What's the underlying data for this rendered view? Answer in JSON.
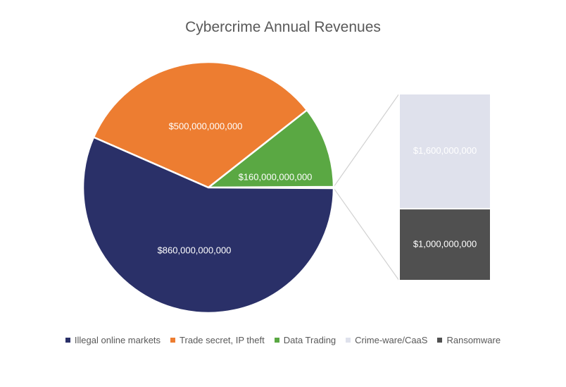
{
  "chart_data": {
    "type": "pie",
    "subtype": "bar-of-pie",
    "title": "Cybercrime Annual Revenues",
    "legend_position": "bottom",
    "grid": false,
    "slices": [
      {
        "name": "Illegal online markets",
        "value": 860000000000,
        "label": "$860,000,000,000",
        "color": "#2a3068"
      },
      {
        "name": "Trade secret, IP theft",
        "value": 500000000000,
        "label": "$500,000,000,000",
        "color": "#ed7d31"
      },
      {
        "name": "Data Trading",
        "value": 160000000000,
        "label": "$160,000,000,000",
        "color": "#5aa843"
      }
    ],
    "secondary_bar": [
      {
        "name": "Crime-ware/CaaS",
        "value": 1600000000,
        "label": "$1,600,000,000",
        "color": "#dfe1ec"
      },
      {
        "name": "Ransomware",
        "value": 1000000000,
        "label": "$1,000,000,000",
        "color": "#505050"
      }
    ],
    "legend": [
      {
        "name": "Illegal online markets",
        "color": "#2a3068"
      },
      {
        "name": "Trade secret, IP theft",
        "color": "#ed7d31"
      },
      {
        "name": "Data Trading",
        "color": "#5aa843"
      },
      {
        "name": "Crime-ware/CaaS",
        "color": "#dfe1ec"
      },
      {
        "name": "Ransomware",
        "color": "#505050"
      }
    ]
  }
}
